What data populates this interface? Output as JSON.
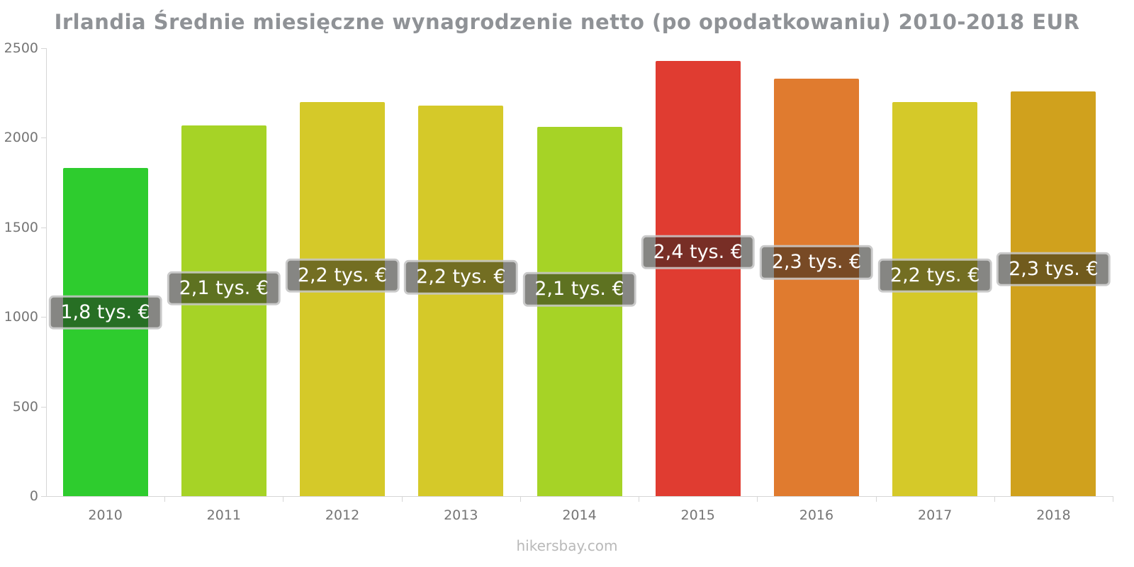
{
  "watermark": "hikersbay.com",
  "colors": {
    "title": "#8f9296",
    "axis": "#d6d6d6",
    "tick_label": "#757575",
    "bar_label_bg": "rgba(35,35,30,0.55)",
    "bar_label_border": "rgba(225,225,225,0.75)",
    "watermark": "#b9b9b9"
  },
  "chart_data": {
    "type": "bar",
    "title": "Irlandia Średnie miesięczne wynagrodzenie netto (po opodatkowaniu) 2010-2018 EUR",
    "categories": [
      "2010",
      "2011",
      "2012",
      "2013",
      "2014",
      "2015",
      "2016",
      "2017",
      "2018"
    ],
    "values": [
      1830,
      2070,
      2200,
      2180,
      2060,
      2430,
      2330,
      2200,
      2260
    ],
    "bar_labels": [
      "1,8 tys. €",
      "2,1 tys. €",
      "2,2 tys. €",
      "2,2 tys. €",
      "2,1 tys. €",
      "2,4 tys. €",
      "2,3 tys. €",
      "2,2 tys. €",
      "2,3 tys. €"
    ],
    "bar_colors": [
      "#2ecc2e",
      "#a6d326",
      "#d5c929",
      "#d5c929",
      "#a6d326",
      "#e03c31",
      "#e07b2f",
      "#d5c929",
      "#d0a11d"
    ],
    "xlabel": "",
    "ylabel": "",
    "ylim": [
      0,
      2500
    ],
    "yticks": [
      0,
      500,
      1000,
      1500,
      2000,
      2500
    ],
    "grid": false,
    "legend": false,
    "bar_label_position_fraction": 0.56
  }
}
